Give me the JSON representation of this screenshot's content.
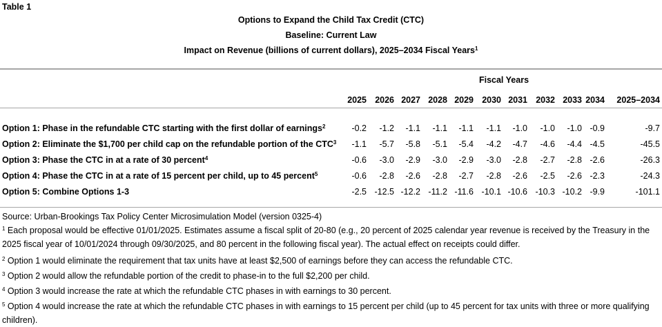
{
  "table_label": "Table 1",
  "title": "Options to Expand the Child Tax Credit (CTC)",
  "subtitle": "Baseline: Current Law",
  "subtitle2": "Impact on Revenue (billions of current dollars), 2025–2034 Fiscal Years",
  "subtitle2_sup": "1",
  "group_header": "Fiscal Years",
  "columns": [
    "2025",
    "2026",
    "2027",
    "2028",
    "2029",
    "2030",
    "2031",
    "2032",
    "2033",
    "2034"
  ],
  "total_column": "2025–2034",
  "rows": [
    {
      "label": "Option 1: Phase in the refundable CTC starting with the first dollar of earnings",
      "sup": "2",
      "values": [
        "-0.2",
        "-1.2",
        "-1.1",
        "-1.1",
        "-1.1",
        "-1.1",
        "-1.0",
        "-1.0",
        "-1.0",
        "-0.9"
      ],
      "total": "-9.7"
    },
    {
      "label": "Option 2: Eliminate the $1,700 per child cap on the refundable portion of the CTC",
      "sup": "3",
      "values": [
        "-1.1",
        "-5.7",
        "-5.8",
        "-5.1",
        "-5.4",
        "-4.2",
        "-4.7",
        "-4.6",
        "-4.4",
        "-4.5"
      ],
      "total": "-45.5"
    },
    {
      "label": "Option 3: Phase the CTC in at a rate of 30 percent",
      "sup": "4",
      "values": [
        "-0.6",
        "-3.0",
        "-2.9",
        "-3.0",
        "-2.9",
        "-3.0",
        "-2.8",
        "-2.7",
        "-2.8",
        "-2.6"
      ],
      "total": "-26.3"
    },
    {
      "label": "Option 4: Phase the CTC in at a rate of 15 percent per child, up to 45 percent",
      "sup": "5",
      "values": [
        "-0.6",
        "-2.8",
        "-2.6",
        "-2.8",
        "-2.7",
        "-2.8",
        "-2.6",
        "-2.5",
        "-2.6",
        "-2.3"
      ],
      "total": "-24.3"
    },
    {
      "label": "Option 5: Combine Options 1-3",
      "sup": "",
      "values": [
        "-2.5",
        "-12.5",
        "-12.2",
        "-11.2",
        "-11.6",
        "-10.1",
        "-10.6",
        "-10.3",
        "-10.2",
        "-9.9"
      ],
      "total": "-101.1"
    }
  ],
  "source": "Source: Urban-Brookings Tax Policy Center Microsimulation Model (version 0325-4)",
  "notes": [
    {
      "sup": "1",
      "text": " Each proposal would be effective 01/01/2025. Estimates assume a fiscal split of 20-80 (e.g., 20 percent of 2025 calendar year revenue is received by the Treasury in the 2025 fiscal year of 10/01/2024 through 09/30/2025, and 80 percent in the following fiscal year). The actual effect on receipts could differ."
    },
    {
      "sup": "2",
      "text": " Option 1 would eliminate the requirement that tax units have at least $2,500 of earnings before they can access the refundable CTC."
    },
    {
      "sup": "3",
      "text": " Option 2 would allow the refundable portion of the credit to phase-in to the full $2,200 per child."
    },
    {
      "sup": "4",
      "text": " Option 3 would increase the rate at which the refundable CTC phases in with earnings to 30 percent."
    },
    {
      "sup": "5",
      "text": " Option 4 would increase the rate at which the refundable CTC phases in with earnings to 15 percent per child (up to 45 percent for tax units with three or more qualifying children)."
    }
  ]
}
